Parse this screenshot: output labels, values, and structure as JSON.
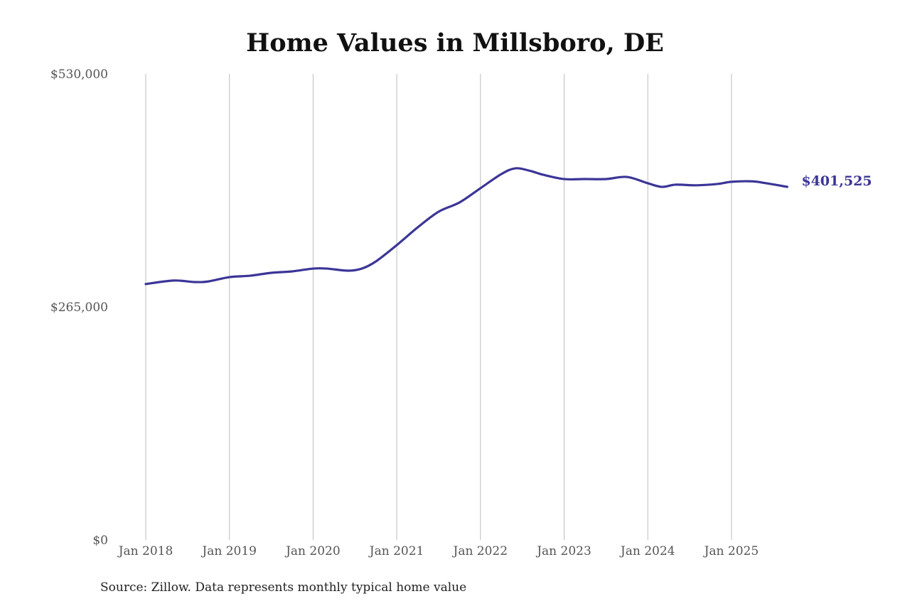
{
  "chart_data": {
    "type": "line",
    "title": "Home Values in Millsboro, DE",
    "xlabel": "",
    "ylabel": "",
    "ylim": [
      0,
      530000
    ],
    "y_ticks": [
      "$0",
      "$265,000",
      "$530,000"
    ],
    "y_tick_values": [
      0,
      265000,
      530000
    ],
    "x_ticks": [
      "Jan 2018",
      "Jan 2019",
      "Jan 2020",
      "Jan 2021",
      "Jan 2022",
      "Jan 2023",
      "Jan 2024",
      "Jan 2025"
    ],
    "x_tick_values": [
      "2018-01",
      "2019-01",
      "2020-01",
      "2021-01",
      "2022-01",
      "2023-01",
      "2024-01",
      "2025-01"
    ],
    "grid": "vertical",
    "line_color": "#3b3597",
    "end_label": "$401,525",
    "series": [
      {
        "x": [
          "2018-01",
          "2018-05",
          "2018-08",
          "2018-10",
          "2019-01",
          "2019-04",
          "2019-07",
          "2019-10",
          "2020-01",
          "2020-03",
          "2020-06",
          "2020-08",
          "2020-10",
          "2021-01",
          "2021-04",
          "2021-07",
          "2021-10",
          "2022-01",
          "2022-04",
          "2022-06",
          "2022-08",
          "2022-10",
          "2023-01",
          "2023-04",
          "2023-07",
          "2023-10",
          "2024-01",
          "2024-03",
          "2024-05",
          "2024-08",
          "2024-11",
          "2025-01",
          "2025-04",
          "2025-06",
          "2025-09"
        ],
        "values": [
          291000,
          295000,
          293300,
          294000,
          298900,
          300500,
          303800,
          305400,
          308600,
          308600,
          306200,
          308600,
          316700,
          335300,
          355500,
          373300,
          383800,
          400000,
          416100,
          422600,
          420000,
          415300,
          410400,
          410400,
          410400,
          412800,
          405600,
          401500,
          404000,
          403300,
          404800,
          407300,
          407800,
          405600,
          401525
        ]
      }
    ],
    "source": "Source: Zillow. Data represents monthly typical home value"
  }
}
